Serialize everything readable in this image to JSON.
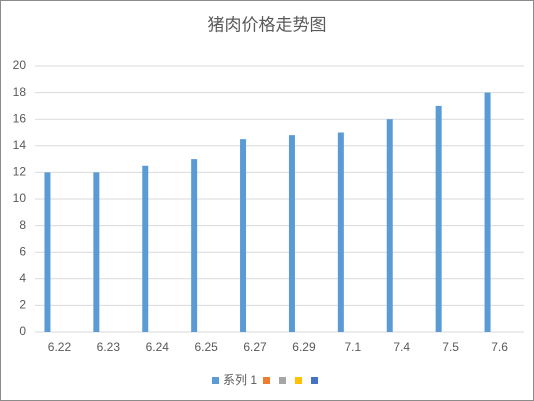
{
  "chart_data": {
    "type": "bar",
    "title": "猪肉价格走势图",
    "categories": [
      "6.22",
      "6.23",
      "6.24",
      "6.25",
      "6.27",
      "6.29",
      "7.1",
      "7.4",
      "7.5",
      "7.6"
    ],
    "series": [
      {
        "name": "系列 1",
        "color": "#5b9bd5",
        "values": [
          12,
          12,
          12.5,
          13,
          14.5,
          14.8,
          15,
          16,
          17,
          18
        ]
      },
      {
        "name": null,
        "color": "#ed7d31",
        "values": [
          null,
          null,
          null,
          null,
          null,
          null,
          null,
          null,
          null,
          null
        ]
      },
      {
        "name": null,
        "color": "#a5a5a5",
        "values": [
          null,
          null,
          null,
          null,
          null,
          null,
          null,
          null,
          null,
          null
        ]
      },
      {
        "name": null,
        "color": "#ffc000",
        "values": [
          null,
          null,
          null,
          null,
          null,
          null,
          null,
          null,
          null,
          null
        ]
      },
      {
        "name": null,
        "color": "#4472c4",
        "values": [
          null,
          null,
          null,
          null,
          null,
          null,
          null,
          null,
          null,
          null
        ]
      }
    ],
    "ylim": [
      0,
      20
    ],
    "yticks": [
      0,
      2,
      4,
      6,
      8,
      10,
      12,
      14,
      16,
      18,
      20
    ],
    "grid": true,
    "legend": "bottom"
  }
}
